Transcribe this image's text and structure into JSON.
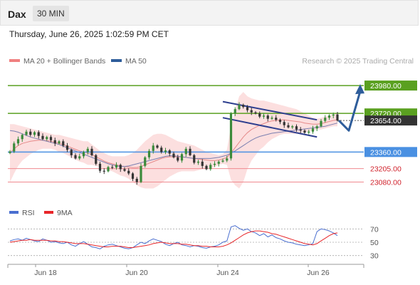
{
  "header": {
    "symbol": "Dax",
    "timeframe": "30 MIN"
  },
  "datetime": "Thursday, June 26, 2025 1:02:59 PM CET",
  "legend": {
    "bollinger": {
      "label": "MA 20 + Bollinger Bands",
      "color": "#f08080"
    },
    "ma50": {
      "label": "MA 50",
      "color": "#2e5d9b"
    }
  },
  "credit": "Research © 2025 Trading Central",
  "rsi_legend": {
    "rsi": {
      "label": "RSI",
      "color": "#4a6fd0"
    },
    "ma9": {
      "label": "9MA",
      "color": "#e8262a"
    }
  },
  "colors": {
    "up": "#3b8a3b",
    "down": "#333333",
    "band": "#fbd4d4",
    "resistance": "#5aa020",
    "support": "#4a90e2",
    "minor_support": "#f08a90",
    "last": "#333333"
  },
  "chart_data": [
    {
      "type": "candlestick",
      "x_ticks": [
        "Jun 18",
        "Jun 20",
        "Jun 24",
        "Jun 26"
      ],
      "ylim": [
        22970,
        24140
      ],
      "levels": [
        {
          "value": 23980,
          "label": "23980.00",
          "kind": "resistance"
        },
        {
          "value": 23720,
          "label": "23720.00",
          "kind": "resistance"
        },
        {
          "value": 23654,
          "label": "23654.00",
          "kind": "last"
        },
        {
          "value": 23360,
          "label": "23360.00",
          "kind": "support"
        },
        {
          "value": 23205,
          "label": "23205.00",
          "kind": "minor_support"
        },
        {
          "value": 23080,
          "label": "23080.00",
          "kind": "minor_support"
        }
      ],
      "close": [
        23365,
        23440,
        23480,
        23520,
        23550,
        23520,
        23545,
        23510,
        23480,
        23500,
        23470,
        23440,
        23460,
        23420,
        23380,
        23330,
        23300,
        23320,
        23360,
        23390,
        23330,
        23250,
        23185,
        23180,
        23220,
        23215,
        23240,
        23200,
        23185,
        23160,
        23110,
        23080,
        23230,
        23310,
        23370,
        23420,
        23400,
        23360,
        23375,
        23345,
        23310,
        23280,
        23340,
        23390,
        23330,
        23260,
        23270,
        23230,
        23200,
        23240,
        23250,
        23270,
        23280,
        23300,
        23720,
        23760,
        23800,
        23780,
        23750,
        23730,
        23720,
        23690,
        23700,
        23670,
        23680,
        23660,
        23640,
        23610,
        23590,
        23600,
        23570,
        23560,
        23540,
        23550,
        23580,
        23600,
        23650,
        23680,
        23700,
        23710,
        23654
      ],
      "bollinger": {
        "upper": [
          23620,
          23620,
          23610,
          23600,
          23590,
          23580,
          23570,
          23560,
          23550,
          23540,
          23530,
          23520,
          23520,
          23510,
          23500,
          23490,
          23480,
          23470,
          23460,
          23460,
          23430,
          23400,
          23370,
          23350,
          23330,
          23320,
          23320,
          23320,
          23320,
          23330,
          23350,
          23380,
          23420,
          23460,
          23490,
          23520,
          23530,
          23530,
          23520,
          23500,
          23480,
          23460,
          23450,
          23440,
          23430,
          23420,
          23400,
          23380,
          23360,
          23350,
          23340,
          23330,
          23340,
          23380,
          23600,
          23750,
          23880,
          23920,
          23880,
          23860,
          23850,
          23840,
          23840,
          23830,
          23820,
          23810,
          23800,
          23790,
          23780,
          23770,
          23760,
          23740,
          23720,
          23700,
          23680,
          23670,
          23680,
          23690,
          23700,
          23710,
          23720
        ],
        "middle": [
          23350,
          23390,
          23420,
          23440,
          23450,
          23460,
          23465,
          23470,
          23470,
          23465,
          23460,
          23450,
          23440,
          23430,
          23415,
          23400,
          23385,
          23370,
          23360,
          23350,
          23335,
          23315,
          23295,
          23275,
          23260,
          23250,
          23240,
          23230,
          23225,
          23220,
          23215,
          23215,
          23225,
          23240,
          23255,
          23270,
          23285,
          23300,
          23310,
          23315,
          23315,
          23315,
          23315,
          23310,
          23305,
          23300,
          23295,
          23290,
          23285,
          23280,
          23280,
          23285,
          23295,
          23310,
          23350,
          23400,
          23450,
          23500,
          23540,
          23570,
          23590,
          23610,
          23625,
          23640,
          23650,
          23655,
          23660,
          23660,
          23655,
          23650,
          23645,
          23640,
          23630,
          23625,
          23620,
          23620,
          23625,
          23635,
          23645,
          23655,
          23660
        ],
        "lower": [
          23080,
          23160,
          23230,
          23280,
          23310,
          23340,
          23360,
          23380,
          23390,
          23390,
          23390,
          23380,
          23360,
          23350,
          23330,
          23310,
          23290,
          23270,
          23260,
          23240,
          23240,
          23230,
          23220,
          23200,
          23190,
          23180,
          23160,
          23140,
          23130,
          23110,
          23080,
          23050,
          23030,
          23020,
          23020,
          23020,
          23040,
          23070,
          23100,
          23130,
          23150,
          23170,
          23180,
          23180,
          23180,
          23180,
          23190,
          23200,
          23210,
          23210,
          23220,
          23240,
          23250,
          23240,
          23100,
          23050,
          23020,
          23080,
          23200,
          23280,
          23330,
          23380,
          23410,
          23450,
          23480,
          23500,
          23520,
          23530,
          23530,
          23530,
          23530,
          23540,
          23540,
          23550,
          23560,
          23570,
          23570,
          23580,
          23590,
          23600,
          23600
        ]
      },
      "ma50": [
        23560,
        23555,
        23545,
        23530,
        23515,
        23500,
        23490,
        23480,
        23470,
        23460,
        23450,
        23440,
        23430,
        23415,
        23400,
        23385,
        23370,
        23355,
        23340,
        23325,
        23310,
        23295,
        23280,
        23265,
        23250,
        23240,
        23230,
        23225,
        23225,
        23230,
        23240,
        23250,
        23260,
        23270,
        23280,
        23290,
        23300,
        23310,
        23320,
        23325,
        23325,
        23320,
        23315,
        23310,
        23305,
        23300,
        23300,
        23300,
        23300,
        23300,
        23305,
        23310,
        23320,
        23330,
        23350,
        23370,
        23395,
        23420,
        23445,
        23470,
        23490,
        23505,
        23515,
        23525,
        23535,
        23540,
        23545,
        23550,
        23555,
        23560,
        23565,
        23570,
        23575,
        23580,
        23585,
        23590,
        23595,
        23600,
        23610,
        23620,
        23630
      ],
      "projection": [
        23654,
        23560,
        23980
      ],
      "channel": {
        "upper": [
          23830,
          23660
        ],
        "lower": [
          23680,
          23500
        ]
      }
    },
    {
      "type": "line",
      "title": "RSI",
      "ylim": [
        20,
        80
      ],
      "y_ticks": [
        70,
        50,
        30
      ],
      "series": [
        {
          "name": "RSI",
          "values": [
            52,
            54,
            55,
            53,
            56,
            54,
            52,
            51,
            55,
            53,
            50,
            51,
            49,
            48,
            50,
            46,
            44,
            48,
            51,
            47,
            43,
            42,
            40,
            44,
            46,
            47,
            45,
            43,
            41,
            40,
            42,
            46,
            50,
            48,
            52,
            55,
            53,
            51,
            47,
            45,
            48,
            50,
            46,
            45,
            43,
            45,
            44,
            42,
            41,
            43,
            44,
            46,
            50,
            52,
            73,
            75,
            71,
            68,
            70,
            66,
            64,
            60,
            63,
            58,
            61,
            57,
            55,
            52,
            50,
            49,
            47,
            46,
            45,
            46,
            48,
            66,
            70,
            69,
            67,
            64,
            60
          ]
        },
        {
          "name": "9MA",
          "values": [
            50,
            51,
            52,
            53,
            53,
            54,
            53,
            53,
            53,
            53,
            52,
            52,
            51,
            51,
            50,
            49,
            48,
            48,
            48,
            47,
            46,
            45,
            44,
            43,
            43,
            44,
            44,
            44,
            43,
            42,
            42,
            43,
            44,
            45,
            46,
            48,
            49,
            50,
            49,
            48,
            48,
            48,
            47,
            47,
            46,
            45,
            45,
            44,
            44,
            43,
            43,
            43,
            44,
            46,
            49,
            53,
            57,
            61,
            64,
            66,
            67,
            67,
            66,
            65,
            63,
            62,
            60,
            58,
            56,
            54,
            52,
            50,
            48,
            47,
            46,
            48,
            52,
            56,
            60,
            63,
            64
          ]
        }
      ]
    }
  ]
}
